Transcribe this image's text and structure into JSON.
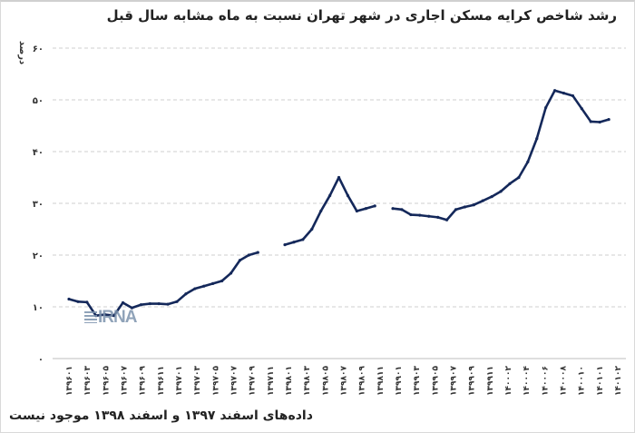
{
  "title": "رشد شاخص کرایه مسکن اجاری در شهر تهران نسبت به ماه مشابه سال قبل",
  "footnote": "داده‌های اسفند ۱۳۹۷ و اسفند ۱۳۹۸ موجود نیست",
  "watermark": "IRNA",
  "y_unit": "درصد",
  "colors": {
    "line": "#14285a",
    "grid": "#cfcfcf",
    "text": "#222222"
  },
  "chart_data": {
    "type": "line",
    "title": "رشد شاخص کرایه مسکن اجاری در شهر تهران نسبت به ماه مشابه سال قبل",
    "xlabel": "",
    "ylabel": "درصد",
    "ylim": [
      0,
      60
    ],
    "yticks": [
      0,
      10,
      20,
      30,
      40,
      50,
      60
    ],
    "ytick_labels": [
      "۰",
      "۱۰",
      "۲۰",
      "۳۰",
      "۴۰",
      "۵۰",
      "۶۰"
    ],
    "grid": true,
    "legend": null,
    "xtick_labels": [
      "۱۳۹۶۰۱",
      "۱۳۹۶۰۳",
      "۱۳۹۶۰۵",
      "۱۳۹۶۰۷",
      "۱۳۹۶۰۹",
      "۱۳۹۶۱۱",
      "۱۳۹۷۰۱",
      "۱۳۹۷۰۳",
      "۱۳۹۷۰۵",
      "۱۳۹۷۰۷",
      "۱۳۹۷۰۹",
      "۱۳۹۷۱۱",
      "۱۳۹۸۰۱",
      "۱۳۹۸۰۳",
      "۱۳۹۸۰۵",
      "۱۳۹۸۰۷",
      "۱۳۹۸۰۹",
      "۱۳۹۸۱۱",
      "۱۳۹۹۰۱",
      "۱۳۹۹۰۳",
      "۱۳۹۹۰۵",
      "۱۳۹۹۰۷",
      "۱۳۹۹۰۹",
      "۱۳۹۹۱۱",
      "۱۴۰۰۰۲",
      "۱۴۰۰۰۴",
      "۱۴۰۰۰۶",
      "۱۴۰۰۰۸",
      "۱۴۰۰۱۰",
      "۱۴۰۱۰۱",
      "۱۴۰۱۰۲"
    ],
    "x": [
      "139601",
      "139602",
      "139603",
      "139604",
      "139605",
      "139606",
      "139607",
      "139608",
      "139609",
      "139610",
      "139611",
      "139612",
      "139701",
      "139702",
      "139703",
      "139704",
      "139705",
      "139706",
      "139707",
      "139708",
      "139709",
      "139710",
      "139711",
      "139712",
      "139801",
      "139802",
      "139803",
      "139804",
      "139805",
      "139806",
      "139807",
      "139808",
      "139809",
      "139810",
      "139811",
      "139812",
      "139901",
      "139902",
      "139903",
      "139904",
      "139905",
      "139906",
      "139907",
      "139908",
      "139909",
      "139910",
      "139911",
      "139912",
      "140001",
      "140002",
      "140003",
      "140004",
      "140005",
      "140006",
      "140007",
      "140008",
      "140009",
      "140010",
      "140011",
      "140012",
      "140101",
      "140102"
    ],
    "series": [
      {
        "name": "رشد شاخص کرایه",
        "values": [
          11.5,
          11.0,
          10.9,
          8.3,
          8.5,
          8.3,
          10.8,
          9.8,
          10.4,
          10.6,
          10.6,
          10.5,
          11.0,
          12.5,
          13.5,
          14.0,
          14.5,
          15.0,
          16.5,
          19.0,
          20.0,
          20.5,
          null,
          null,
          22.0,
          22.5,
          23.0,
          25.0,
          28.5,
          31.5,
          35.0,
          31.5,
          28.5,
          29.0,
          29.5,
          null,
          29.0,
          28.8,
          27.8,
          27.7,
          27.5,
          27.3,
          26.8,
          28.8,
          29.3,
          29.7,
          30.5,
          31.3,
          32.3,
          33.8,
          35.0,
          38.0,
          42.5,
          48.5,
          51.8,
          51.3,
          50.8,
          48.3,
          45.8,
          45.7,
          46.2,
          null
        ]
      }
    ],
    "notes": "Missing values for Esfand 1397 and Esfand 1398"
  }
}
